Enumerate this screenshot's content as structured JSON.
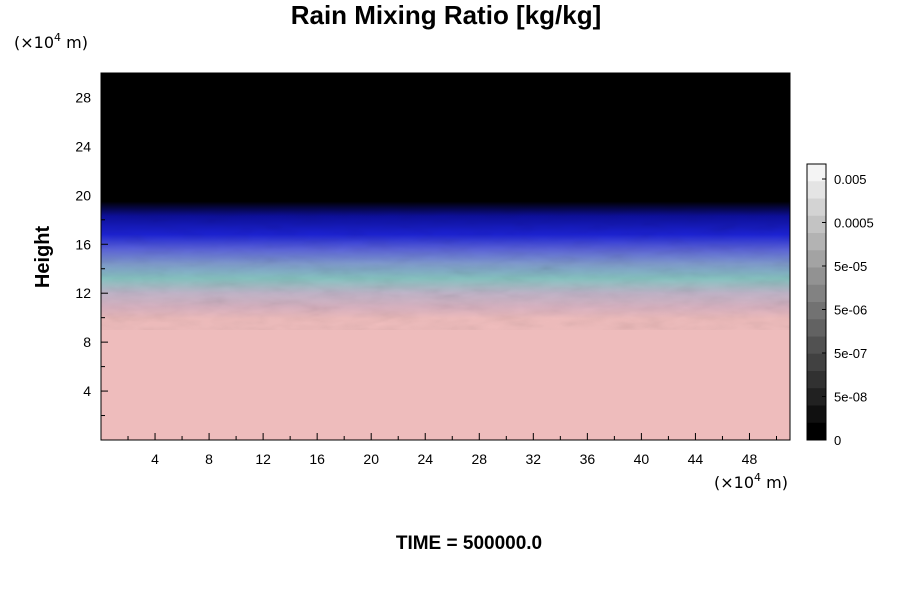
{
  "chart_data": {
    "type": "heatmap",
    "title": "Rain Mixing Ratio [kg/kg]",
    "ylabel": "Height",
    "xlabel": "",
    "x_unit": {
      "prefix": "(×10",
      "exponent": "4",
      "suffix": " m)"
    },
    "y_unit": {
      "prefix": "(×10",
      "exponent": "4",
      "suffix": " m)"
    },
    "xlim": [
      0,
      51
    ],
    "ylim": [
      0,
      30
    ],
    "x_ticks": [
      4,
      8,
      12,
      16,
      20,
      24,
      28,
      32,
      36,
      40,
      44,
      48
    ],
    "y_ticks": [
      4,
      8,
      12,
      16,
      20,
      24,
      28
    ],
    "x_minor_step": 2,
    "y_minor_step": 2,
    "field_bands": [
      {
        "from": 0,
        "to": 10.5,
        "label": "0.005"
      },
      {
        "from": 10.5,
        "to": 13,
        "label": "0.0005"
      },
      {
        "from": 13,
        "to": 16.5,
        "label": "5e-05"
      },
      {
        "from": 16.5,
        "to": 19.5,
        "label": "5e-06"
      },
      {
        "from": 19.5,
        "to": 30,
        "label": "0"
      }
    ],
    "colorbar": {
      "labels": [
        "0.005",
        "0.0005",
        "5e-05",
        "5e-06",
        "5e-07",
        "5e-08",
        "0"
      ],
      "levels": 16,
      "top_color": "#f4f4f4",
      "bottom_color": "#000000"
    },
    "grid": false,
    "legend": "right colorbar"
  },
  "footer": {
    "time_label": "TIME = 500000.0"
  }
}
